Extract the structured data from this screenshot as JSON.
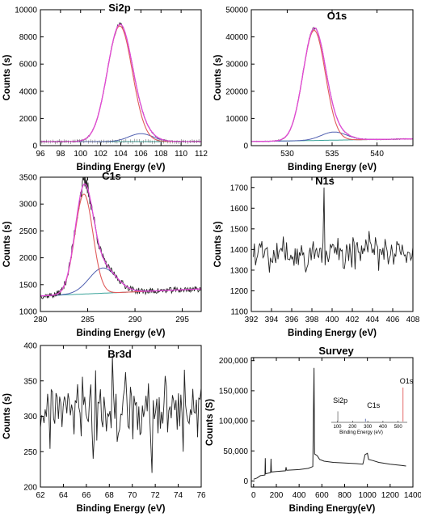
{
  "colors": {
    "raw": "#222222",
    "envelope": "#e04ad8",
    "main_peak": "#e05b5b",
    "secondary_peak": "#4f5fb0",
    "background": "#3aa39a"
  },
  "chart_data": [
    {
      "id": "si2p",
      "type": "line",
      "title": "Si2p",
      "xlabel": "Binding Energy (eV)",
      "ylabel": "Counts (s)",
      "xlim": [
        96,
        112
      ],
      "ylim": [
        0,
        10000
      ],
      "xticks": [
        96,
        98,
        100,
        102,
        104,
        106,
        108,
        110,
        112
      ],
      "yticks": [
        0,
        2000,
        4000,
        6000,
        8000,
        10000
      ],
      "xtick_labels": [
        "96",
        "98",
        "100",
        "102",
        "104",
        "106",
        "108",
        "110",
        "112"
      ],
      "ytick_labels": [
        "0",
        "2000",
        "4000",
        "6000",
        "8000",
        "10000"
      ],
      "background": [
        300,
        300
      ],
      "peaks": [
        {
          "role": "main",
          "center": 103.9,
          "height": 8500,
          "width": 1.25
        },
        {
          "role": "secondary",
          "center": 106.0,
          "height": 580,
          "width": 1.2
        }
      ],
      "envelope": true,
      "raw": {
        "noise": 40,
        "seed": 11,
        "tick_marks": true
      }
    },
    {
      "id": "o1s",
      "type": "line",
      "title": "O1s",
      "xlabel": "Binding Energy (eV)",
      "ylabel": "Counts (s)",
      "xlim": [
        526,
        544
      ],
      "ylim": [
        0,
        50000
      ],
      "xticks": [
        530,
        535,
        540
      ],
      "yticks": [
        0,
        10000,
        20000,
        30000,
        40000,
        50000
      ],
      "xtick_labels": [
        "530",
        "535",
        "540"
      ],
      "ytick_labels": [
        "0",
        "10000",
        "20000",
        "30000",
        "40000",
        "50000"
      ],
      "background": [
        1500,
        2500
      ],
      "peaks": [
        {
          "role": "main",
          "center": 533.0,
          "height": 40500,
          "width": 1.25
        },
        {
          "role": "secondary",
          "center": 535.2,
          "height": 3000,
          "width": 1.4
        }
      ],
      "envelope": true,
      "raw": {
        "noise": 150,
        "seed": 23,
        "tick_marks": false
      }
    },
    {
      "id": "c1s",
      "type": "line",
      "title": "C1s",
      "xlabel": "Binding Energy (eV)",
      "ylabel": "Counts (s)",
      "xlim": [
        280,
        297
      ],
      "ylim": [
        1000,
        3500
      ],
      "xticks": [
        280,
        285,
        290,
        295
      ],
      "yticks": [
        1000,
        1500,
        2000,
        2500,
        3000,
        3500
      ],
      "xtick_labels": [
        "280",
        "285",
        "290",
        "295"
      ],
      "ytick_labels": [
        "1000",
        "1500",
        "2000",
        "2500",
        "3000",
        "3500"
      ],
      "background": [
        1290,
        1420
      ],
      "peaks": [
        {
          "role": "main",
          "center": 284.6,
          "height": 1860,
          "width": 0.95
        },
        {
          "role": "secondary",
          "center": 286.6,
          "height": 470,
          "width": 1.45
        }
      ],
      "envelope": true,
      "raw": {
        "noise": 55,
        "seed": 37,
        "tick_marks": false
      }
    },
    {
      "id": "n1s",
      "type": "line",
      "title": "N1s",
      "xlabel": "Binding Energy (eV)",
      "ylabel": "Counts (s)",
      "xlim": [
        392,
        408
      ],
      "ylim": [
        1100,
        1750
      ],
      "xticks": [
        392,
        394,
        396,
        398,
        400,
        402,
        404,
        406,
        408
      ],
      "yticks": [
        1100,
        1200,
        1300,
        1400,
        1500,
        1600,
        1700
      ],
      "xtick_labels": [
        "392",
        "394",
        "396",
        "398",
        "400",
        "402",
        "404",
        "406",
        "408"
      ],
      "ytick_labels": [
        "1100",
        "1200",
        "1300",
        "1400",
        "1500",
        "1600",
        "1700"
      ],
      "noise": {
        "x0": 392.2,
        "x1": 408,
        "n": 150,
        "mean": 1390,
        "amp": 70,
        "seed": 5,
        "spike_x": 399.2,
        "spike_y": 1700,
        "min_y": 1270
      }
    },
    {
      "id": "br3d",
      "type": "line",
      "title": "Br3d",
      "xlabel": "Binding Energy (eV)",
      "ylabel": "Counts (s)",
      "xlim": [
        62,
        76
      ],
      "ylim": [
        200,
        400
      ],
      "xticks": [
        62,
        64,
        66,
        68,
        70,
        72,
        74,
        76
      ],
      "yticks": [
        200,
        250,
        300,
        350,
        400
      ],
      "xtick_labels": [
        "62",
        "64",
        "66",
        "68",
        "70",
        "72",
        "74",
        "76"
      ],
      "ytick_labels": [
        "200",
        "250",
        "300",
        "350",
        "400"
      ],
      "noise": {
        "x0": 62,
        "x1": 76,
        "n": 135,
        "mean": 305,
        "amp": 38,
        "seed": 77,
        "spike_x": 68.3,
        "spike_y": 385,
        "min_x": 71.7,
        "min_y": 220
      }
    },
    {
      "id": "survey",
      "type": "line",
      "title": "Survey",
      "xlabel": "Binding Energy(eV)",
      "ylabel": "Counts (S)",
      "xlim": [
        -20,
        1400
      ],
      "ylim": [
        -10000,
        205000
      ],
      "xticks": [
        0,
        200,
        400,
        600,
        800,
        1000,
        1200,
        1400
      ],
      "yticks": [
        0,
        50000,
        100000,
        150000,
        200000
      ],
      "xtick_labels": [
        "0",
        "200",
        "400",
        "600",
        "800",
        "1000",
        "1200",
        "1400"
      ],
      "ytick_labels": [
        "0",
        "50,000",
        "100,000",
        "150,000",
        "200,000"
      ],
      "points": [
        [
          0,
          3000
        ],
        [
          30,
          5000
        ],
        [
          60,
          9000
        ],
        [
          100,
          10000
        ],
        [
          103,
          38000
        ],
        [
          106,
          12000
        ],
        [
          150,
          14000
        ],
        [
          153,
          37000
        ],
        [
          157,
          15000
        ],
        [
          200,
          16000
        ],
        [
          280,
          17000
        ],
        [
          285,
          23000
        ],
        [
          290,
          18000
        ],
        [
          400,
          19000
        ],
        [
          480,
          21000
        ],
        [
          520,
          24000
        ],
        [
          531,
          188000
        ],
        [
          536,
          45000
        ],
        [
          560,
          42000
        ],
        [
          580,
          36000
        ],
        [
          620,
          33000
        ],
        [
          700,
          31000
        ],
        [
          800,
          30000
        ],
        [
          900,
          29000
        ],
        [
          960,
          28000
        ],
        [
          980,
          44000
        ],
        [
          1000,
          46000
        ],
        [
          1010,
          36000
        ],
        [
          1050,
          34000
        ],
        [
          1100,
          31000
        ],
        [
          1200,
          28000
        ],
        [
          1300,
          26000
        ],
        [
          1340,
          25000
        ]
      ],
      "inset": {
        "xticks": [
          100,
          200,
          300,
          400,
          500
        ],
        "xtick_labels": [
          "100",
          "200",
          "300",
          "400",
          "500"
        ],
        "xlabel": "Binding Energy (eV)",
        "labels": [
          "Si2p",
          "C1s",
          "O1s"
        ],
        "peaks": [
          {
            "x": 103,
            "h": 0.3
          },
          {
            "x": 285,
            "h": 0.08
          },
          {
            "x": 532,
            "h": 1.0
          }
        ]
      }
    }
  ]
}
